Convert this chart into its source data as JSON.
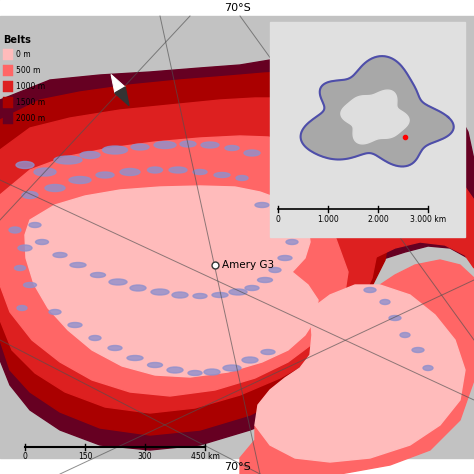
{
  "legend_title": "Belts",
  "legend_items": [
    {
      "label": "0 m",
      "color": "#FFBBBB"
    },
    {
      "label": "500 m",
      "color": "#FF6666"
    },
    {
      "label": "1000 m",
      "color": "#DD2020"
    },
    {
      "label": "1500 m",
      "color": "#AA0000"
    },
    {
      "label": "2000 m",
      "color": "#660022"
    }
  ],
  "lat_label_top": "70°S",
  "lat_label_bot": "70°S",
  "scale_labels": [
    "150",
    "300",
    "450 km"
  ],
  "inset_scale": "0    1.000   2.000   3.000 km",
  "blue_color": "#9090CC",
  "bg_gray": "#C0C0C0",
  "inset_border": "#888888",
  "label_amery": "Amery G3"
}
